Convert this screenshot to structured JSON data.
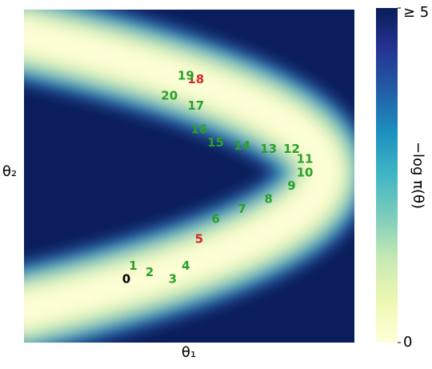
{
  "chart_data": {
    "type": "scatter",
    "xlabel": "θ₁",
    "ylabel": "θ₂",
    "xlim": [
      0,
      1
    ],
    "ylim": [
      0,
      1
    ],
    "labels": [
      "0",
      "1",
      "2",
      "3",
      "4",
      "5",
      "6",
      "7",
      "8",
      "9",
      "10",
      "11",
      "12",
      "13",
      "14",
      "15",
      "16",
      "17",
      "18",
      "19",
      "20"
    ],
    "x": [
      0.31,
      0.33,
      0.38,
      0.45,
      0.49,
      0.53,
      0.58,
      0.66,
      0.74,
      0.81,
      0.85,
      0.85,
      0.81,
      0.74,
      0.66,
      0.58,
      0.53,
      0.52,
      0.52,
      0.49,
      0.44
    ],
    "y": [
      0.19,
      0.23,
      0.21,
      0.19,
      0.23,
      0.31,
      0.37,
      0.4,
      0.43,
      0.47,
      0.51,
      0.55,
      0.58,
      0.58,
      0.59,
      0.6,
      0.64,
      0.71,
      0.79,
      0.8,
      0.74
    ],
    "label_colors": [
      "#000000",
      "#2ca02c",
      "#2ca02c",
      "#2ca02c",
      "#2ca02c",
      "#d62728",
      "#2ca02c",
      "#2ca02c",
      "#2ca02c",
      "#2ca02c",
      "#2ca02c",
      "#2ca02c",
      "#2ca02c",
      "#2ca02c",
      "#2ca02c",
      "#2ca02c",
      "#2ca02c",
      "#2ca02c",
      "#d62728",
      "#2ca02c",
      "#2ca02c"
    ],
    "colorbar": {
      "label": "−log π(θ)",
      "lim": [
        0,
        5
      ],
      "ticks": [
        0,
        {
          "value": 5,
          "label": "≥ 5"
        }
      ]
    }
  }
}
